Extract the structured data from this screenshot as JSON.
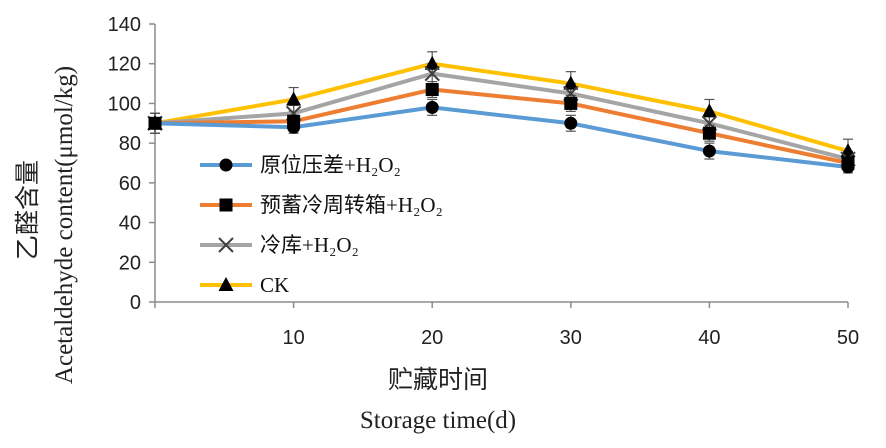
{
  "chart_data": {
    "type": "line",
    "title": "",
    "xlabel": "贮藏时间",
    "xlabel_en": "Storage time(d)",
    "ylabel": "乙醛含量",
    "ylabel_en": "Acetaldehyde content(μmol/kg)",
    "x": [
      0,
      10,
      20,
      30,
      40,
      50
    ],
    "x_tick_labels": [
      "10",
      "20",
      "30",
      "40",
      "50"
    ],
    "xlim": [
      0,
      50
    ],
    "ylim": [
      0,
      140
    ],
    "y_ticks": [
      0,
      20,
      40,
      60,
      80,
      100,
      120,
      140
    ],
    "grid": false,
    "legend_position": "left",
    "series": [
      {
        "name": "原位压差+H₂O₂",
        "color": "#5b9bd5",
        "marker": "circle-icon",
        "values": [
          90,
          88,
          98,
          90,
          76,
          68
        ],
        "errors": [
          5,
          3,
          4,
          4,
          4,
          3
        ]
      },
      {
        "name": "预蓄冷周转箱+H₂O₂",
        "color": "#ed7d31",
        "marker": "square-icon",
        "values": [
          90,
          91,
          107,
          100,
          85,
          70
        ],
        "errors": [
          5,
          3,
          4,
          4,
          4,
          3
        ]
      },
      {
        "name": "冷库+H₂O₂",
        "color": "#a5a5a5",
        "marker": "cross-icon",
        "values": [
          90,
          95,
          115,
          105,
          90,
          72
        ],
        "errors": [
          5,
          4,
          5,
          5,
          4,
          4
        ]
      },
      {
        "name": "CK",
        "color": "#ffc000",
        "marker": "triangle-icon",
        "values": [
          90,
          102,
          120,
          110,
          96,
          76
        ],
        "errors": [
          5,
          6,
          6,
          6,
          6,
          6
        ]
      }
    ]
  }
}
